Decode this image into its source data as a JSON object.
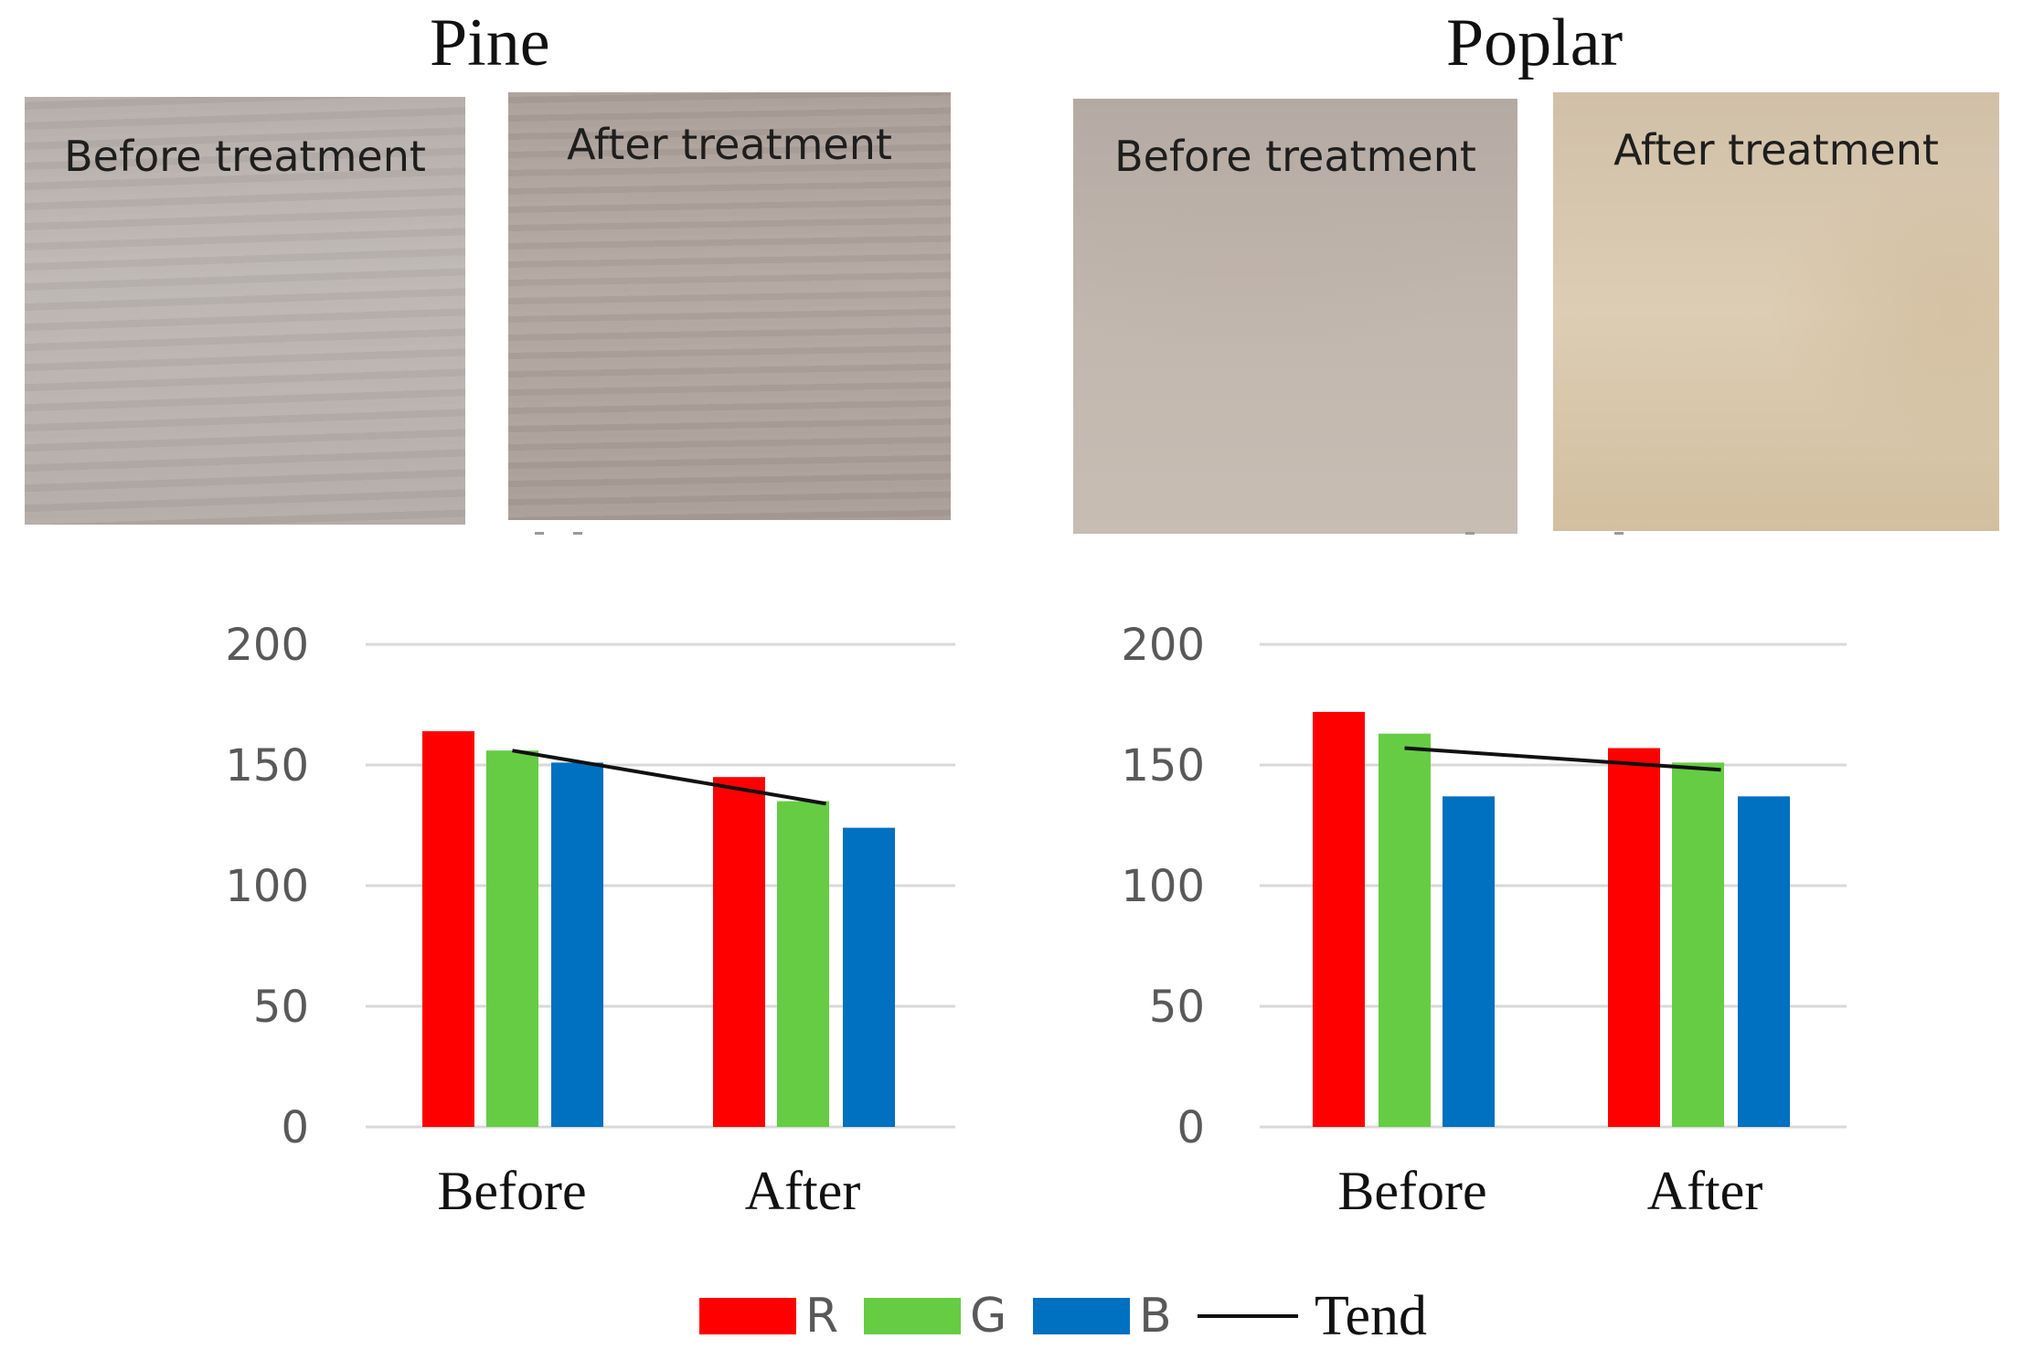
{
  "titles": {
    "pine": "Pine",
    "poplar": "Poplar"
  },
  "photos": {
    "pine_before": "Before treatment",
    "pine_after": "After treatment",
    "poplar_before": "Before treatment",
    "poplar_after": "After treatment"
  },
  "colors": {
    "R": "#ff0000",
    "G": "#66cc44",
    "B": "#0070c0",
    "tend": "#111111",
    "grid": "#d9d9d9"
  },
  "legend": {
    "r": "R",
    "g": "G",
    "b": "B",
    "tend": "Tend"
  },
  "chart_data": [
    {
      "type": "bar",
      "title": "Pine",
      "categories": [
        "Before",
        "After"
      ],
      "series": [
        {
          "name": "R",
          "values": [
            164,
            145
          ]
        },
        {
          "name": "G",
          "values": [
            156,
            135
          ]
        },
        {
          "name": "B",
          "values": [
            151,
            124
          ]
        }
      ],
      "trend": {
        "name": "Tend",
        "values": [
          156,
          134
        ]
      },
      "ylim": [
        0,
        200
      ],
      "yticks": [
        "0",
        "50",
        "100",
        "150",
        "200"
      ],
      "grid": true,
      "legend_position": "bottom"
    },
    {
      "type": "bar",
      "title": "Poplar",
      "categories": [
        "Before",
        "After"
      ],
      "series": [
        {
          "name": "R",
          "values": [
            172,
            157
          ]
        },
        {
          "name": "G",
          "values": [
            163,
            151
          ]
        },
        {
          "name": "B",
          "values": [
            137,
            137
          ]
        }
      ],
      "trend": {
        "name": "Tend",
        "values": [
          157,
          148
        ]
      },
      "ylim": [
        0,
        200
      ],
      "yticks": [
        "0",
        "50",
        "100",
        "150",
        "200"
      ],
      "grid": true,
      "legend_position": "bottom"
    }
  ]
}
